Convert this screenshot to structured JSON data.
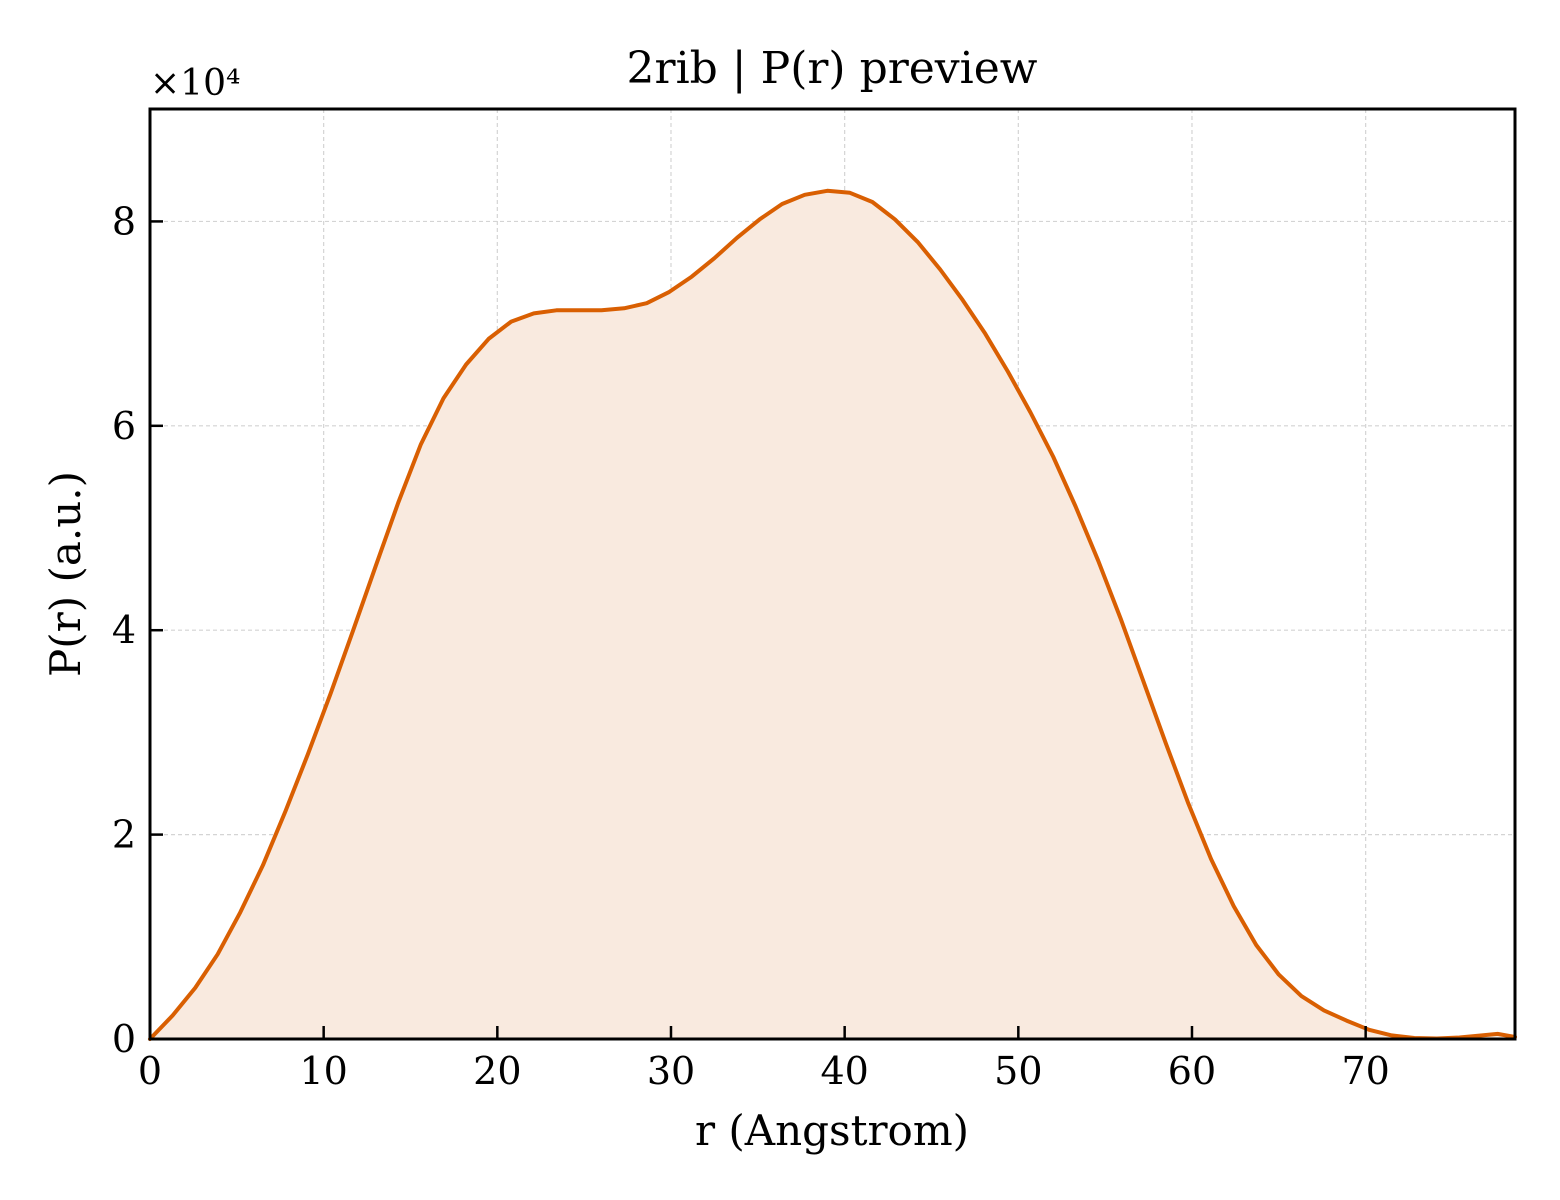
{
  "chart_data": {
    "type": "area",
    "title": "2rib | P(r) preview",
    "xlabel": "r (Angstrom)",
    "ylabel": "P(r) (a.u.)",
    "y_multiplier_label": "×10⁴",
    "y_scale_factor": 10000,
    "xlim": [
      0,
      78.6
    ],
    "ylim": [
      0,
      91000
    ],
    "x_ticks": [
      0,
      10,
      20,
      30,
      40,
      50,
      60,
      70
    ],
    "x_tick_labels": [
      "0",
      "10",
      "20",
      "30",
      "40",
      "50",
      "60",
      "70"
    ],
    "y_ticks": [
      0,
      20000,
      40000,
      60000,
      80000
    ],
    "y_tick_labels": [
      "0",
      "2",
      "4",
      "6",
      "8"
    ],
    "grid": true,
    "line_color": "#d95f02",
    "fill_color": "#f9eadf",
    "series": [
      {
        "x": [
          0,
          1.3,
          2.6,
          3.9,
          5.2,
          6.5,
          7.8,
          9.1,
          10.4,
          11.7,
          13.0,
          14.3,
          15.6,
          16.9,
          18.2,
          19.5,
          20.8,
          22.1,
          23.4,
          24.7,
          26.0,
          27.3,
          28.6,
          29.9,
          31.2,
          32.5,
          33.8,
          35.1,
          36.4,
          37.7,
          39.0,
          40.3,
          41.6,
          42.9,
          44.2,
          45.5,
          46.8,
          48.1,
          49.4,
          50.7,
          52.0,
          53.3,
          54.6,
          55.9,
          57.2,
          58.5,
          59.8,
          61.1,
          62.4,
          63.7,
          65.0,
          66.3,
          67.6,
          68.9,
          70.2,
          71.5,
          72.8,
          74.1,
          75.4,
          76.7,
          77.6,
          78.6
        ],
        "y": [
          0,
          2300,
          5000,
          8300,
          12400,
          17000,
          22300,
          27900,
          33800,
          40000,
          46300,
          52500,
          58200,
          62700,
          66000,
          68500,
          70200,
          71000,
          71300,
          71300,
          71300,
          71500,
          72000,
          73100,
          74600,
          76400,
          78400,
          80200,
          81700,
          82600,
          83000,
          82800,
          81900,
          80200,
          78000,
          75300,
          72300,
          69000,
          65300,
          61300,
          57000,
          52100,
          46800,
          41100,
          35000,
          28900,
          23000,
          17600,
          13000,
          9200,
          6300,
          4200,
          2800,
          1800,
          900,
          350,
          100,
          50,
          150,
          350,
          500,
          200
        ]
      }
    ]
  }
}
